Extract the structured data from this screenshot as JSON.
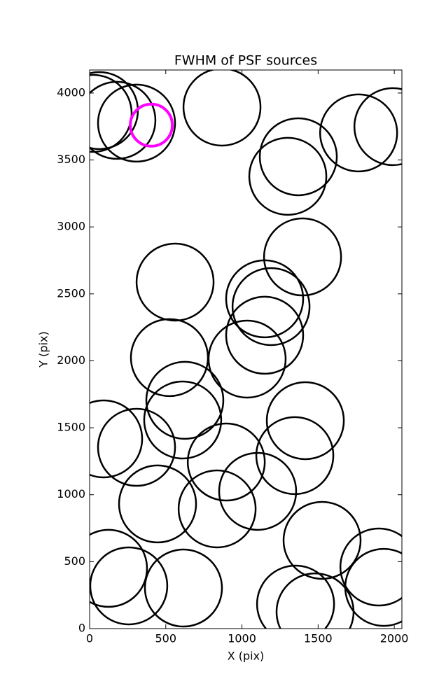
{
  "chart_data": {
    "type": "scatter",
    "title": "FWHM of PSF sources",
    "x_label": "X (pix)",
    "y_label": "Y (pix)",
    "xlim": [
      0,
      2050
    ],
    "ylim": [
      0,
      4172
    ],
    "xticks": [
      0,
      500,
      1000,
      1500,
      2000
    ],
    "yticks": [
      0,
      500,
      1000,
      1500,
      2000,
      2500,
      3000,
      3500,
      4000
    ],
    "series": [
      {
        "color": "#000000",
        "x": [
          64,
          23,
          308,
          179,
          869,
          1370,
          1301,
          1766,
          1991,
          1398,
          561,
          1149,
          1191,
          1149,
          1034,
          524,
          625,
          611,
          1416,
          1347,
          92,
          308,
          897,
          1103,
          446,
          837,
          1526,
          1899,
          1931,
          124,
          257,
          616,
          1352,
          1480
        ],
        "values": [
          3869,
          3848,
          3775,
          3796,
          3895,
          3524,
          3378,
          3702,
          3749,
          2776,
          2588,
          2463,
          2405,
          2191,
          2013,
          2024,
          1705,
          1558,
          1553,
          1292,
          1417,
          1354,
          1244,
          1025,
          931,
          894,
          659,
          460,
          308,
          450,
          319,
          303,
          183,
          125
        ]
      },
      {
        "color": "#ff00ff",
        "x": [
          405
        ],
        "values": [
          3760
        ]
      }
    ]
  }
}
